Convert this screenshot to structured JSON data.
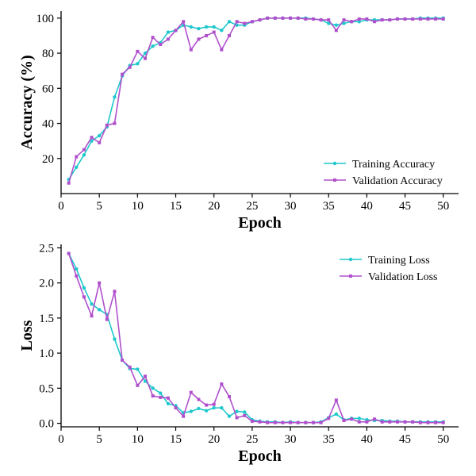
{
  "chart_data": [
    {
      "type": "line",
      "xlabel": "Epoch",
      "ylabel": "Accuracy (%)",
      "xlim": [
        0,
        52
      ],
      "ylim": [
        0,
        104
      ],
      "xticks": [
        0,
        5,
        10,
        15,
        20,
        25,
        30,
        35,
        40,
        45,
        50
      ],
      "yticks": [
        20,
        40,
        60,
        80,
        100
      ],
      "legend_position": "lower-right",
      "x": [
        1,
        2,
        3,
        4,
        5,
        6,
        7,
        8,
        9,
        10,
        11,
        12,
        13,
        14,
        15,
        16,
        17,
        18,
        19,
        20,
        21,
        22,
        23,
        24,
        25,
        26,
        27,
        28,
        29,
        30,
        31,
        32,
        33,
        34,
        35,
        36,
        37,
        38,
        39,
        40,
        41,
        42,
        43,
        44,
        45,
        46,
        47,
        48,
        49,
        50
      ],
      "series": [
        {
          "name": "Training Accuracy",
          "color": "#1fc8cc",
          "marker": "circle",
          "values": [
            8,
            15,
            22,
            30,
            33,
            38,
            55,
            67,
            73,
            74,
            80,
            84,
            86,
            92,
            93,
            96,
            95,
            94,
            95,
            95,
            93,
            98,
            96,
            96,
            98,
            99,
            100,
            100,
            100,
            100,
            100,
            100,
            99.5,
            99,
            97,
            96,
            97,
            98,
            98,
            99,
            99,
            99,
            99,
            99.5,
            99.5,
            99.5,
            100,
            100,
            100,
            100
          ]
        },
        {
          "name": "Validation Accuracy",
          "color": "#b050cc",
          "marker": "square",
          "values": [
            6,
            21,
            25,
            32,
            29,
            39,
            40,
            68,
            72,
            81,
            77,
            89,
            85,
            88,
            93,
            98,
            82,
            88,
            90,
            92,
            82,
            90,
            98,
            97,
            98,
            99,
            100,
            100,
            100,
            100,
            100,
            99.5,
            99.5,
            99,
            99,
            93,
            99,
            98,
            99.5,
            99.5,
            98,
            99,
            99,
            99.5,
            99.5,
            99.5,
            99.5,
            99.5,
            99.5,
            99.5
          ]
        }
      ]
    },
    {
      "type": "line",
      "xlabel": "Epoch",
      "ylabel": "Loss",
      "xlim": [
        0,
        52
      ],
      "ylim": [
        -0.05,
        2.55
      ],
      "xticks": [
        0,
        5,
        10,
        15,
        20,
        25,
        30,
        35,
        40,
        45,
        50
      ],
      "yticks": [
        0.0,
        0.5,
        1.0,
        1.5,
        2.0,
        2.5
      ],
      "ytick_labels": [
        "0.0",
        "0.5",
        "1.0",
        "1.5",
        "2.0",
        "2.5"
      ],
      "legend_position": "upper-right",
      "x": [
        1,
        2,
        3,
        4,
        5,
        6,
        7,
        8,
        9,
        10,
        11,
        12,
        13,
        14,
        15,
        16,
        17,
        18,
        19,
        20,
        21,
        22,
        23,
        24,
        25,
        26,
        27,
        28,
        29,
        30,
        31,
        32,
        33,
        34,
        35,
        36,
        37,
        38,
        39,
        40,
        41,
        42,
        43,
        44,
        45,
        46,
        47,
        48,
        49,
        50
      ],
      "series": [
        {
          "name": "Training Loss",
          "color": "#1fc8cc",
          "marker": "circle",
          "values": [
            2.42,
            2.2,
            1.93,
            1.7,
            1.62,
            1.55,
            1.2,
            0.9,
            0.78,
            0.77,
            0.6,
            0.5,
            0.43,
            0.28,
            0.25,
            0.15,
            0.17,
            0.21,
            0.18,
            0.22,
            0.22,
            0.1,
            0.17,
            0.16,
            0.05,
            0.03,
            0.02,
            0.02,
            0.01,
            0.02,
            0.01,
            0.01,
            0.01,
            0.02,
            0.08,
            0.13,
            0.05,
            0.07,
            0.07,
            0.05,
            0.04,
            0.04,
            0.03,
            0.03,
            0.02,
            0.02,
            0.02,
            0.02,
            0.02,
            0.02
          ]
        },
        {
          "name": "Validation Loss",
          "color": "#b050cc",
          "marker": "square",
          "values": [
            2.42,
            2.1,
            1.8,
            1.53,
            2.0,
            1.48,
            1.88,
            0.9,
            0.8,
            0.54,
            0.67,
            0.39,
            0.37,
            0.36,
            0.22,
            0.1,
            0.44,
            0.34,
            0.26,
            0.27,
            0.56,
            0.38,
            0.08,
            0.11,
            0.03,
            0.02,
            0.01,
            0.01,
            0.01,
            0.01,
            0.01,
            0.01,
            0.01,
            0.01,
            0.07,
            0.33,
            0.04,
            0.06,
            0.02,
            0.02,
            0.06,
            0.02,
            0.02,
            0.02,
            0.02,
            0.02,
            0.01,
            0.01,
            0.01,
            0.01
          ]
        }
      ]
    }
  ]
}
